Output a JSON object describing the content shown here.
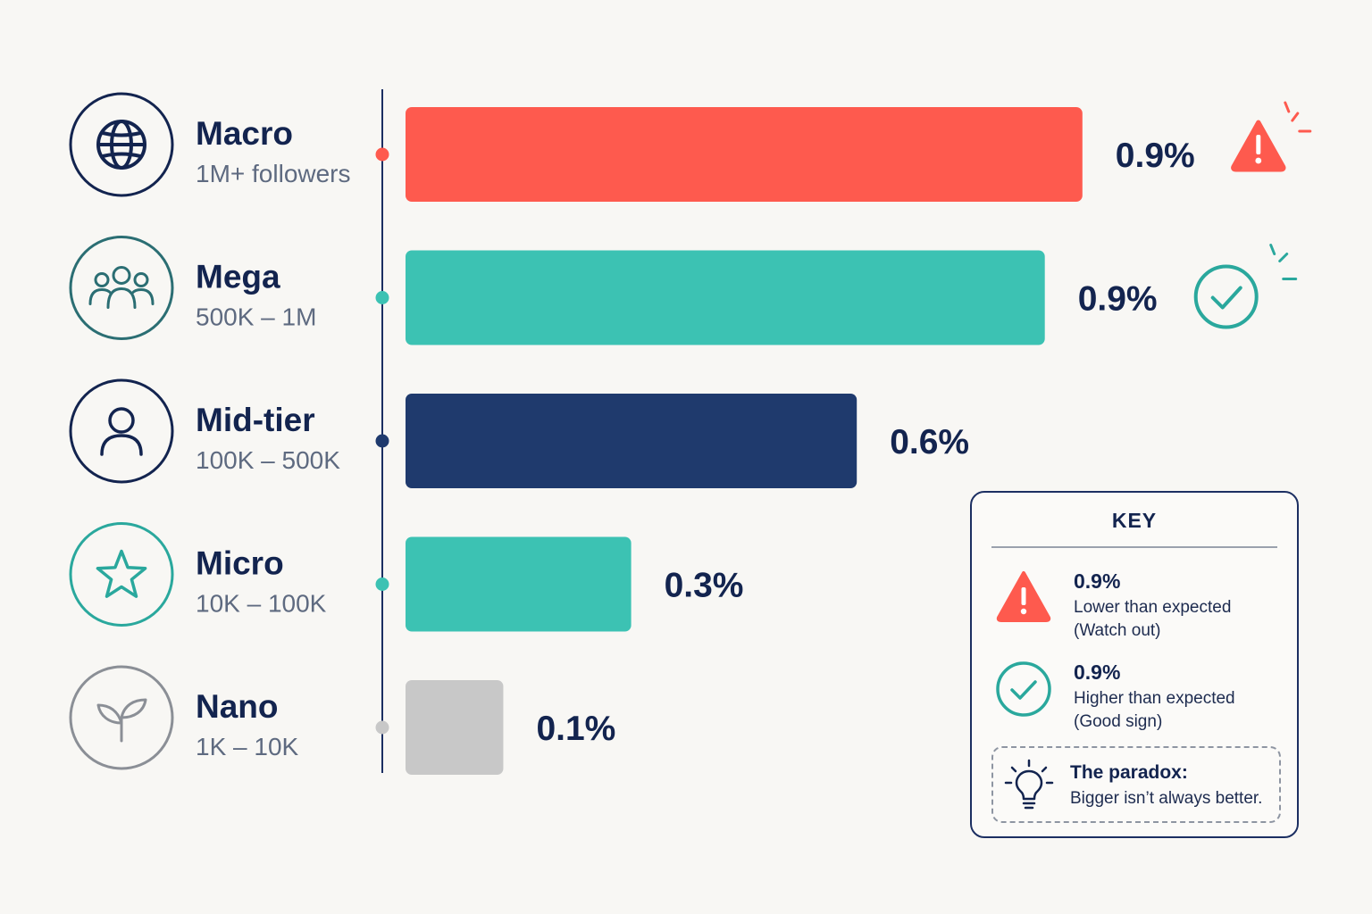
{
  "chart_data": {
    "type": "bar",
    "orientation": "horizontal",
    "title": "",
    "xlabel": "",
    "ylabel": "",
    "xlim": [
      0,
      1.0
    ],
    "grid": false,
    "categories": [
      "Macro",
      "Mega",
      "Mid-tier",
      "Micro",
      "Nano"
    ],
    "ranges": [
      "1M+ followers",
      "500K – 1M",
      "100K – 500K",
      "10K – 100K",
      "1K – 10K"
    ],
    "icons": [
      "globe-icon",
      "group-icon",
      "user-icon",
      "star-icon",
      "sprout-icon"
    ],
    "value_labels": [
      "0.9%",
      "0.9%",
      "0.6%",
      "0.3%",
      "0.1%"
    ],
    "values": [
      0.9,
      0.85,
      0.6,
      0.3,
      0.13
    ],
    "colors": [
      "#fe5a4e",
      "#3cc2b3",
      "#1f3a6d",
      "#3cc2b3",
      "#c8c8c8"
    ],
    "icon_colors": [
      "#13244f",
      "#2b6e73",
      "#13244f",
      "#2aa89d",
      "#8b8f96"
    ],
    "markers": [
      "warning-icon",
      "check-icon",
      null,
      null,
      null
    ]
  },
  "key": {
    "title": "KEY",
    "entries": [
      {
        "icon": "warning-icon",
        "value": "0.9%",
        "line1": "Lower than expected",
        "line2": "(Watch out)"
      },
      {
        "icon": "check-icon",
        "value": "0.9%",
        "line1": "Higher than expected",
        "line2": "(Good sign)"
      }
    ],
    "paradox": {
      "icon": "lightbulb-icon",
      "title": "The paradox:",
      "text": "Bigger isn’t always better."
    }
  }
}
